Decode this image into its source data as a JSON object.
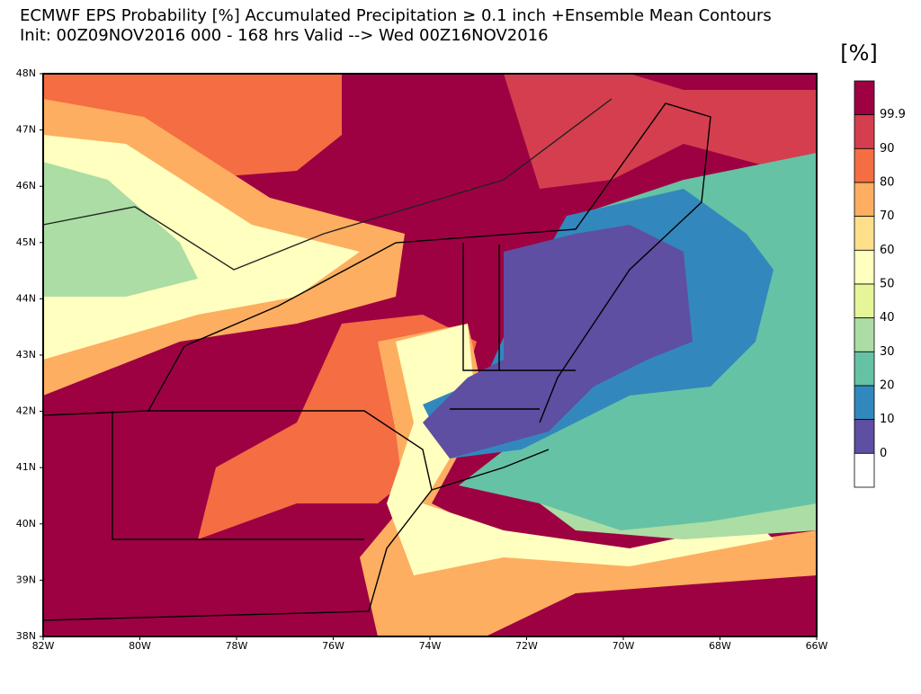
{
  "header": {
    "title": "ECMWF EPS Probability [%] Accumulated Precipitation ≥ 0.1 inch   +Ensemble Mean Contours",
    "subtitle": "Init: 00Z09NOV2016   000 - 168 hrs Valid --> Wed 00Z16NOV2016"
  },
  "map": {
    "lat_ticks": [
      "48N",
      "47N",
      "46N",
      "45N",
      "44N",
      "43N",
      "42N",
      "41N",
      "40N",
      "39N",
      "38N"
    ],
    "lon_ticks": [
      "82W",
      "80W",
      "78W",
      "76W",
      "74W",
      "72W",
      "70W",
      "68W",
      "66W"
    ]
  },
  "colorbar": {
    "unit": "[%]",
    "levels": [
      99.9,
      90,
      80,
      70,
      60,
      50,
      40,
      30,
      20,
      10,
      0
    ],
    "colors": [
      "#9e0142",
      "#d53e4f",
      "#f46d43",
      "#fdae61",
      "#fee08b",
      "#ffffbf",
      "#e6f598",
      "#abdda4",
      "#66c2a5",
      "#3288bd",
      "#5e4fa2",
      "#ffffff"
    ]
  }
}
